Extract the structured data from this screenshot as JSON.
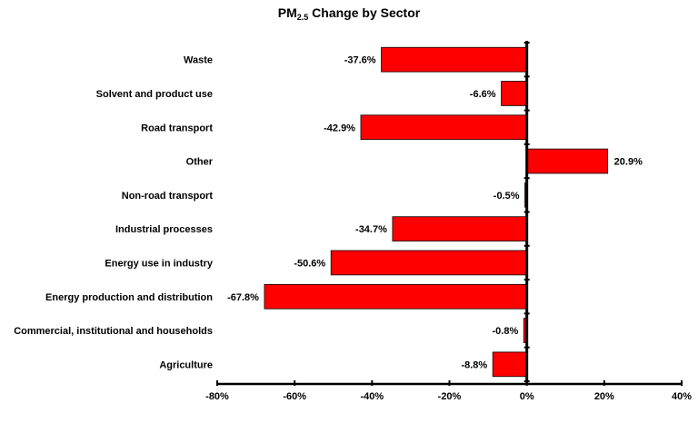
{
  "chart_data": {
    "type": "bar",
    "orientation": "horizontal",
    "title": "PM2.5 Change by Sector",
    "title_parts": {
      "main": "PM",
      "subscript": "2.5",
      "rest": " Change by Sector"
    },
    "xlabel": "",
    "ylabel": "",
    "categories": [
      "Waste",
      "Solvent and product use",
      "Road transport",
      "Other",
      "Non-road transport",
      "Industrial processes",
      "Energy use in industry",
      "Energy production and distribution",
      "Commercial, institutional and households",
      "Agriculture"
    ],
    "values": [
      -37.6,
      -6.6,
      -42.9,
      20.9,
      -0.5,
      -34.7,
      -50.6,
      -67.8,
      -0.8,
      -8.8
    ],
    "data_labels": [
      "-37.6%",
      "-6.6%",
      "-42.9%",
      "20.9%",
      "-0.5%",
      "-34.7%",
      "-50.6%",
      "-67.8%",
      "-0.8%",
      "-8.8%"
    ],
    "xlim": [
      -80,
      40
    ],
    "xticks": [
      -80,
      -60,
      -40,
      -20,
      0,
      20,
      40
    ],
    "xtick_labels": [
      "-80%",
      "-60%",
      "-40%",
      "-20%",
      "0%",
      "20%",
      "40%"
    ],
    "grid": false,
    "legend": "none",
    "bar_color": "#ff0000",
    "bar_edge_color": "#000000"
  }
}
